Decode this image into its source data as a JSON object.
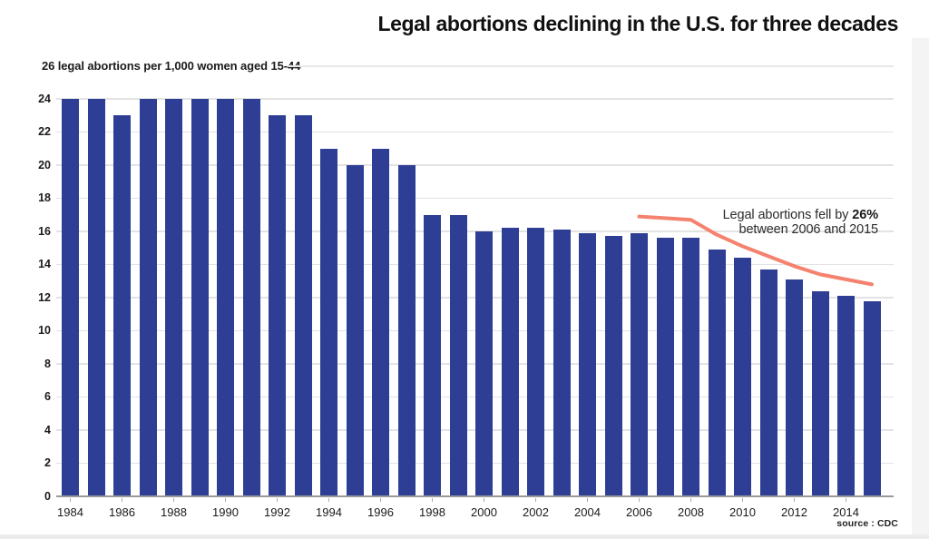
{
  "page": {
    "title": "Legal abortions declining in the U.S. for three decades",
    "subtitle": "26 legal abortions per 1,000 women aged 15-44",
    "annotation": {
      "line1_prefix": "Legal abortions fell by ",
      "line1_bold": "26%",
      "line2": "between 2006 and 2015"
    },
    "source": "source : CDC"
  },
  "colors": {
    "bar": "#2d3e94",
    "trend_line": "#f5826e",
    "gridline": "#e3e3e3",
    "axis": "#9a9a9a",
    "text": "#1b1b1b"
  },
  "chart_data": {
    "type": "bar",
    "title": "Legal abortions declining in the U.S. for three decades",
    "subtitle": "26 legal abortions per 1,000 women aged 15-44",
    "xlabel": "",
    "ylabel": "legal abortions per 1,000 women aged 15-44",
    "ylim": [
      0,
      24
    ],
    "y_ticks": [
      0,
      2,
      4,
      6,
      8,
      10,
      12,
      14,
      16,
      18,
      20,
      22,
      24
    ],
    "grid": "horizontal",
    "legend": "none",
    "categories": [
      1984,
      1985,
      1986,
      1987,
      1988,
      1989,
      1990,
      1991,
      1992,
      1993,
      1994,
      1995,
      1996,
      1997,
      1998,
      1999,
      2000,
      2001,
      2002,
      2003,
      2004,
      2005,
      2006,
      2007,
      2008,
      2009,
      2010,
      2011,
      2012,
      2013,
      2014,
      2015
    ],
    "x_tick_labels": [
      "1984",
      "1986",
      "1988",
      "1990",
      "1992",
      "1994",
      "1996",
      "1998",
      "2000",
      "2002",
      "2004",
      "2006",
      "2008",
      "2010",
      "2012",
      "2014"
    ],
    "values": [
      24,
      24,
      23,
      24,
      24,
      24,
      24,
      24,
      23,
      23,
      21,
      20,
      21,
      20,
      17,
      17,
      16,
      16.2,
      16.2,
      16.1,
      15.9,
      15.7,
      15.9,
      15.6,
      15.6,
      14.9,
      14.4,
      13.7,
      13.1,
      12.4,
      12.1,
      11.8
    ],
    "series": [
      {
        "name": "legal-abortions-rate",
        "type": "bar",
        "x": [
          1984,
          1985,
          1986,
          1987,
          1988,
          1989,
          1990,
          1991,
          1992,
          1993,
          1994,
          1995,
          1996,
          1997,
          1998,
          1999,
          2000,
          2001,
          2002,
          2003,
          2004,
          2005,
          2006,
          2007,
          2008,
          2009,
          2010,
          2011,
          2012,
          2013,
          2014,
          2015
        ],
        "values": [
          24,
          24,
          23,
          24,
          24,
          24,
          24,
          24,
          23,
          23,
          21,
          20,
          21,
          20,
          17,
          17,
          16,
          16.2,
          16.2,
          16.1,
          15.9,
          15.7,
          15.9,
          15.6,
          15.6,
          14.9,
          14.4,
          13.7,
          13.1,
          12.4,
          12.1,
          11.8
        ]
      },
      {
        "name": "trend-line-2006-2015",
        "type": "line",
        "x": [
          2006,
          2007,
          2008,
          2009,
          2010,
          2011,
          2012,
          2013,
          2014,
          2015
        ],
        "values": [
          16.9,
          16.8,
          16.7,
          15.8,
          15.1,
          14.5,
          13.9,
          13.4,
          13.1,
          12.8
        ]
      }
    ],
    "annotation": "Legal abortions fell by 26% between 2006 and 2015",
    "source": "source : CDC"
  }
}
